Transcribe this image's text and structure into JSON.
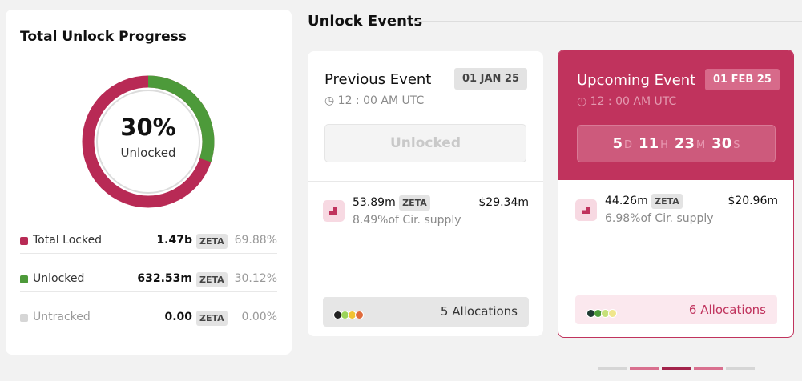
{
  "progress": {
    "title": "Total Unlock Progress",
    "percent": "30%",
    "caption": "Unlocked",
    "rows": [
      {
        "label": "Total Locked",
        "amount": "1.47b",
        "token": "ZETA",
        "share": "69.88%",
        "color": "#b82a55"
      },
      {
        "label": "Unlocked",
        "amount": "632.53m",
        "token": "ZETA",
        "share": "30.12%",
        "color": "#4d9a3a"
      },
      {
        "label": "Untracked",
        "amount": "0.00",
        "token": "ZETA",
        "share": "0.00%",
        "color": "#d6d6d6"
      }
    ]
  },
  "events": {
    "title": "Unlock Events",
    "previous": {
      "title": "Previous Event",
      "date": "01 JAN 25",
      "time": "12 : 00 AM UTC",
      "status": "Unlocked",
      "amount": "53.89m",
      "token": "ZETA",
      "usd": "$29.34m",
      "supply": "8.49%of Cir. supply",
      "allocations": "5 Allocations"
    },
    "upcoming": {
      "title": "Upcoming Event",
      "date": "01 FEB 25",
      "time": "12 : 00 AM UTC",
      "countdown": [
        {
          "value": "5",
          "unit": "D"
        },
        {
          "value": "11",
          "unit": "H"
        },
        {
          "value": "23",
          "unit": "M"
        },
        {
          "value": "30",
          "unit": "S"
        }
      ],
      "amount": "44.26m",
      "token": "ZETA",
      "usd": "$20.96m",
      "supply": "6.98%of Cir. supply",
      "allocations": "6 Allocations"
    }
  }
}
